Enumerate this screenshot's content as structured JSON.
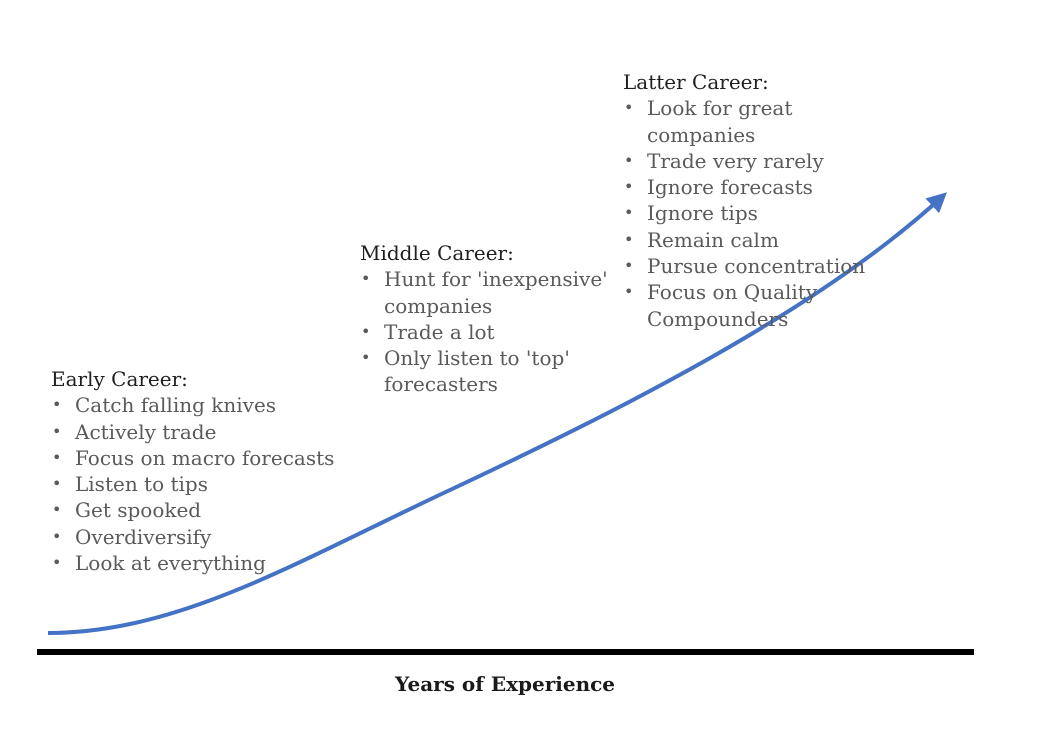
{
  "colors": {
    "curve": "#4472c4",
    "axis": "#000000",
    "text": "#5a5a5a",
    "heading": "#1f1f1f"
  },
  "stages": [
    {
      "heading": "Early Career:",
      "items": [
        "Catch falling knives",
        "Actively trade",
        "Focus on macro forecasts",
        "Listen to tips",
        "Get spooked",
        "Overdiversify",
        "Look at everything"
      ]
    },
    {
      "heading": "Middle Career:",
      "items": [
        "Hunt for 'inexpensive' companies",
        "Trade a lot",
        "Only listen to 'top' forecasters"
      ]
    },
    {
      "heading": "Latter Career:",
      "items": [
        "Look for great companies",
        "Trade very rarely",
        "Ignore forecasts",
        "Ignore tips",
        "Remain calm",
        "Pursue concentration",
        "Focus on Quality Compounders"
      ]
    }
  ],
  "x_axis_label": "Years of Experience"
}
